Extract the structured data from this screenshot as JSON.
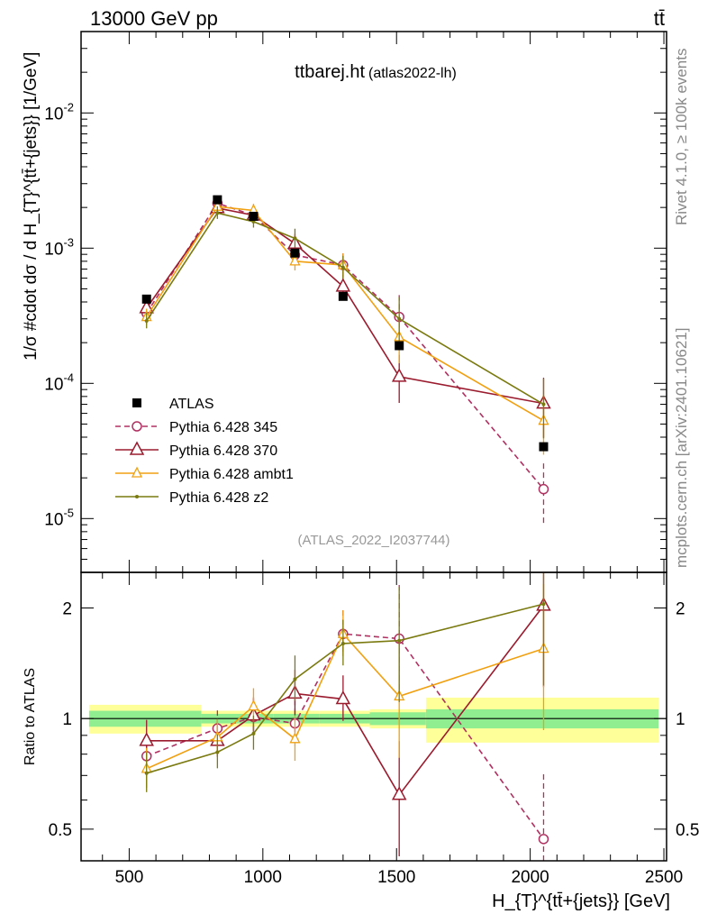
{
  "header": {
    "left": "13000 GeV pp",
    "right": "tt̄"
  },
  "side_labels": {
    "rivet": "Rivet 4.1.0, ≥ 100k events",
    "mcplots": "mcplots.cern.ch [arXiv:2401.10621]"
  },
  "colors": {
    "atlas": "#000000",
    "p345": "#b03060",
    "p370": "#9b1b2e",
    "ambt1": "#f0a010",
    "z2": "#7a7a10",
    "band_inner": "#90ee90",
    "band_outer": "#ffff99"
  },
  "chart_data": [
    {
      "type": "line",
      "title": "ttbarej.ht",
      "subtitle": "(atlas2022-lh)",
      "watermark": "(ATLAS_2022_I2037744)",
      "ylabel": "1/σ #cdot dσ / d H_{T}^{tt̄+{jets}} [1/GeV]",
      "yscale": "log",
      "xlim": [
        320,
        2510
      ],
      "ylim": [
        4e-06,
        0.04
      ],
      "ytick_labels": [
        "10^-5",
        "10^-4",
        "10^-3",
        "10^-2"
      ],
      "x": [
        565,
        830,
        965,
        1120,
        1300,
        1510,
        2050
      ],
      "series": [
        {
          "name": "ATLAS",
          "values": [
            0.00042,
            0.00228,
            0.00172,
            0.00092,
            0.00044,
            0.00019,
            3.4e-05
          ]
        },
        {
          "name": "Pythia 6.428 345",
          "values": [
            0.00033,
            0.00215,
            0.00175,
            0.00089,
            0.00075,
            0.00031,
            1.65e-05
          ]
        },
        {
          "name": "Pythia 6.428 370",
          "values": [
            0.00036,
            0.00198,
            0.00175,
            0.00108,
            0.00052,
            0.000112,
            7.1e-05
          ]
        },
        {
          "name": "Pythia 6.428 ambt1",
          "values": [
            0.00031,
            0.00203,
            0.0019,
            0.0008,
            0.00075,
            0.00022,
            5.3e-05
          ]
        },
        {
          "name": "Pythia 6.428 z2",
          "values": [
            0.00029,
            0.00182,
            0.00157,
            0.00118,
            0.00072,
            0.0003,
            7e-05
          ]
        }
      ]
    },
    {
      "type": "line",
      "ylabel": "Ratio to ATLAS",
      "xlabel": "H_{T}^{tt̄+{jets}} [GeV]",
      "yscale": "log",
      "xlim": [
        320,
        2510
      ],
      "ylim": [
        0.41,
        2.5
      ],
      "ytick_labels": [
        "0.5",
        "1",
        "2"
      ],
      "xtick_labels": [
        "500",
        "1000",
        "1500",
        "2000",
        "2500"
      ],
      "x": [
        565,
        830,
        965,
        1120,
        1300,
        1510,
        2050
      ],
      "series": [
        {
          "name": "Pythia 6.428 345",
          "values": [
            0.79,
            0.94,
            1.01,
            0.97,
            1.7,
            1.65,
            0.47
          ]
        },
        {
          "name": "Pythia 6.428 370",
          "values": [
            0.87,
            0.87,
            1.02,
            1.17,
            1.13,
            0.62,
            2.03
          ]
        },
        {
          "name": "Pythia 6.428 ambt1",
          "values": [
            0.73,
            0.89,
            1.08,
            0.88,
            1.7,
            1.15,
            1.55
          ]
        },
        {
          "name": "Pythia 6.428 z2",
          "values": [
            0.71,
            0.81,
            0.91,
            1.28,
            1.6,
            1.63,
            2.05
          ]
        }
      ]
    }
  ]
}
